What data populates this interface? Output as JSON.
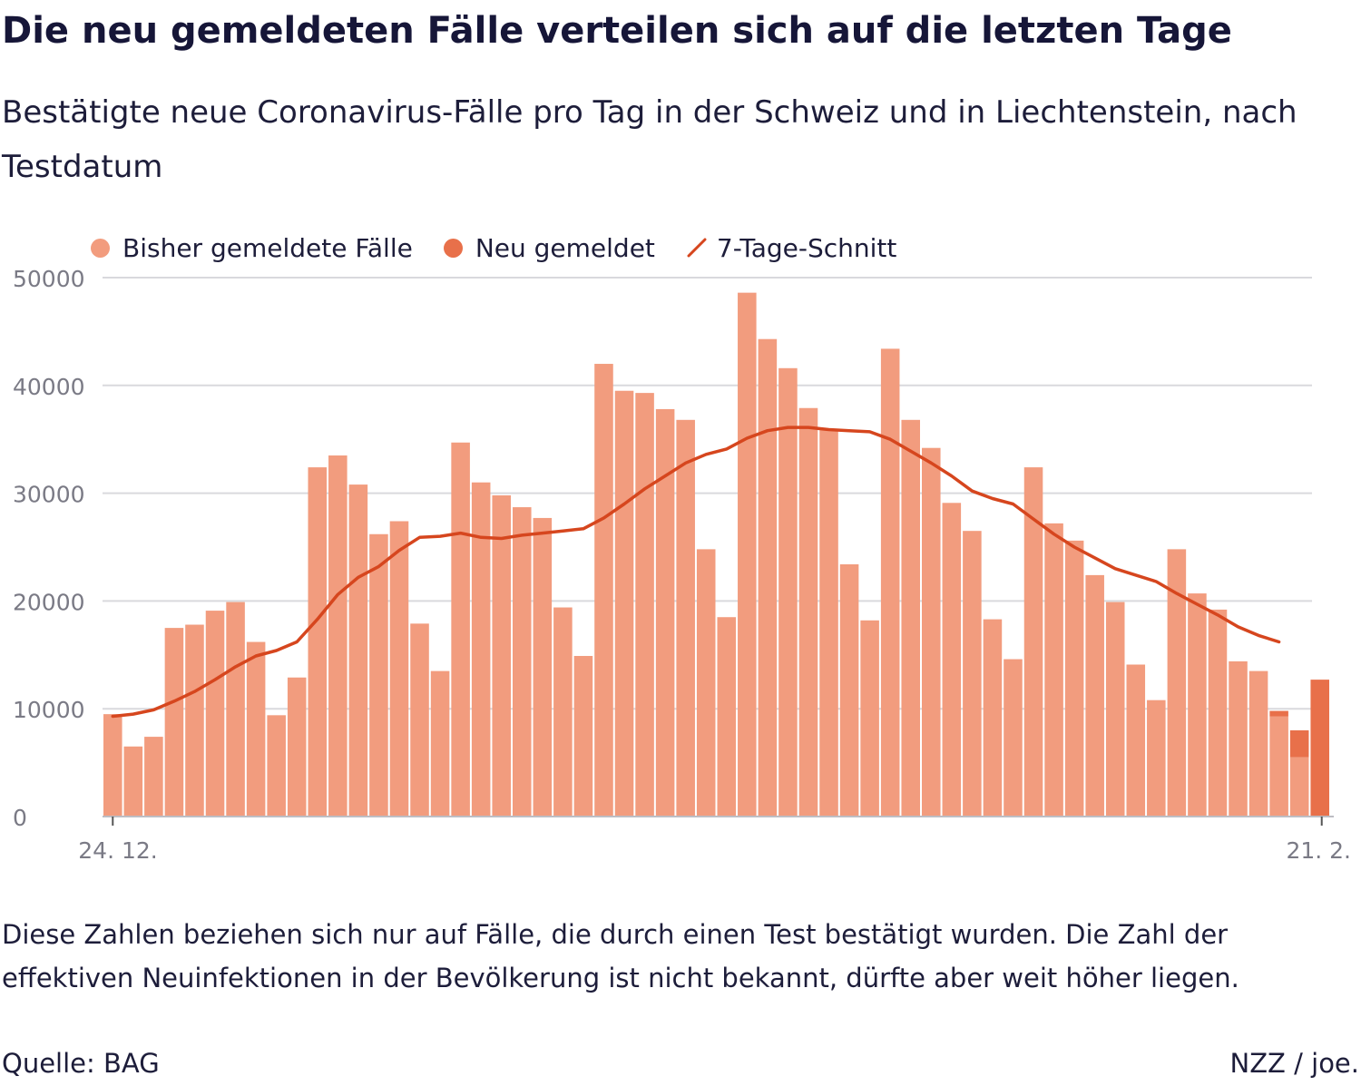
{
  "title": "Die neu gemeldeten Fälle verteilen sich auf die letzten Tage",
  "subtitle": "Bestätigte neue Coronavirus-Fälle pro Tag in der Schweiz und in Liechtenstein, nach Testdatum",
  "legend": {
    "reported": "Bisher gemeldete Fälle",
    "new": "Neu gemeldet",
    "avg": "7-Tage-Schnitt"
  },
  "colors": {
    "reported": "#f29c7e",
    "new": "#e8704a",
    "avg": "#d6461e",
    "grid": "#d9d9dd",
    "axis_text": "#7a7a85"
  },
  "note": "Diese Zahlen beziehen sich nur auf Fälle, die durch einen Test bestätigt wurden. Die Zahl der effektiven Neuinfektionen in der Bevölkerung ist nicht bekannt, dürfte aber weit höher liegen.",
  "source": "Quelle: BAG",
  "credit": "NZZ / joe.",
  "chart_data": {
    "type": "bar",
    "x_start_label": "24. 12.",
    "x_end_label": "21. 2.",
    "ylim": [
      0,
      50000
    ],
    "yticks": [
      0,
      10000,
      20000,
      30000,
      40000,
      50000
    ],
    "grid": true,
    "legend_position": "top-left",
    "series": [
      {
        "name": "Bisher gemeldete Fälle",
        "values": [
          9500,
          6500,
          7400,
          17500,
          17800,
          19100,
          19900,
          16200,
          9400,
          12900,
          32400,
          33500,
          30800,
          26200,
          27400,
          17900,
          13500,
          34700,
          31000,
          29800,
          28700,
          27700,
          19400,
          14900,
          42000,
          39500,
          39300,
          37800,
          36800,
          24800,
          18500,
          48600,
          44300,
          41600,
          37900,
          35900,
          23400,
          18200,
          43400,
          36800,
          34200,
          29100,
          26500,
          18300,
          14600,
          32400,
          27200,
          25600,
          22400,
          19900,
          14100,
          10800,
          24800,
          20700,
          19200,
          14400,
          13500,
          9300,
          5500,
          0
        ]
      },
      {
        "name": "Neu gemeldet",
        "values": [
          0,
          0,
          0,
          0,
          0,
          0,
          0,
          0,
          0,
          0,
          0,
          0,
          0,
          0,
          0,
          0,
          0,
          0,
          0,
          0,
          0,
          0,
          0,
          0,
          0,
          0,
          0,
          0,
          0,
          0,
          0,
          0,
          0,
          0,
          0,
          0,
          0,
          0,
          0,
          0,
          0,
          0,
          0,
          0,
          0,
          0,
          0,
          0,
          0,
          0,
          0,
          0,
          0,
          0,
          0,
          0,
          0,
          500,
          2500,
          12700
        ]
      },
      {
        "name": "7-Tage-Schnitt",
        "values": [
          9300,
          9500,
          9900,
          10700,
          11600,
          12700,
          13900,
          14900,
          15400,
          16200,
          18300,
          20600,
          22200,
          23200,
          24700,
          25900,
          26000,
          26300,
          25900,
          25800,
          26100,
          26300,
          26500,
          26700,
          27700,
          29000,
          30400,
          31600,
          32800,
          33600,
          34100,
          35100,
          35800,
          36100,
          36100,
          35900,
          35800,
          35700,
          35000,
          33900,
          32800,
          31600,
          30200,
          29500,
          29000,
          27600,
          26200,
          25000,
          24000,
          23000,
          22400,
          21800,
          20700,
          19700,
          18700,
          17600,
          16800,
          16200
        ]
      }
    ]
  }
}
